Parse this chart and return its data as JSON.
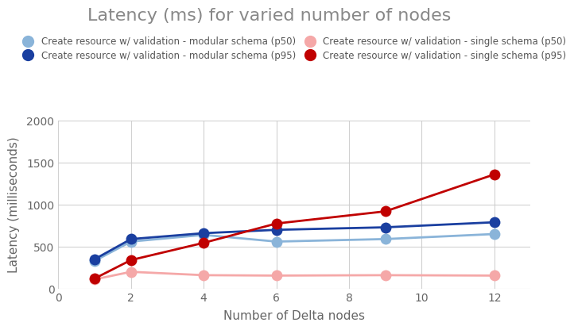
{
  "title": "Latency (ms) for varied number of nodes",
  "xlabel": "Number of Delta nodes",
  "ylabel": "Latency (milliseconds)",
  "x": [
    1,
    2,
    4,
    6,
    9,
    12
  ],
  "series": [
    {
      "label": "Create resource w/ validation - modular schema (p50)",
      "values": [
        330,
        560,
        640,
        560,
        590,
        650
      ],
      "color": "#8ab4d9",
      "linewidth": 2,
      "markersize": 10
    },
    {
      "label": "Create resource w/ validation - modular schema (p95)",
      "values": [
        350,
        590,
        660,
        700,
        730,
        790
      ],
      "color": "#1a3fa0",
      "linewidth": 2,
      "markersize": 10
    },
    {
      "label": "Create resource w/ validation - single schema (p50)",
      "values": [
        110,
        200,
        160,
        155,
        160,
        155
      ],
      "color": "#f5a8a8",
      "linewidth": 2,
      "markersize": 10
    },
    {
      "label": "Create resource w/ validation - single schema (p95)",
      "values": [
        120,
        340,
        545,
        775,
        920,
        1360
      ],
      "color": "#c00000",
      "linewidth": 2,
      "markersize": 10
    }
  ],
  "ylim": [
    0,
    2000
  ],
  "xlim": [
    0,
    13
  ],
  "yticks": [
    0,
    500,
    1000,
    1500,
    2000
  ],
  "xticks": [
    0,
    2,
    4,
    6,
    8,
    10,
    12
  ],
  "background_color": "#ffffff",
  "grid_color": "#cccccc",
  "title_color": "#888888",
  "axis_label_color": "#666666",
  "tick_color": "#666666"
}
